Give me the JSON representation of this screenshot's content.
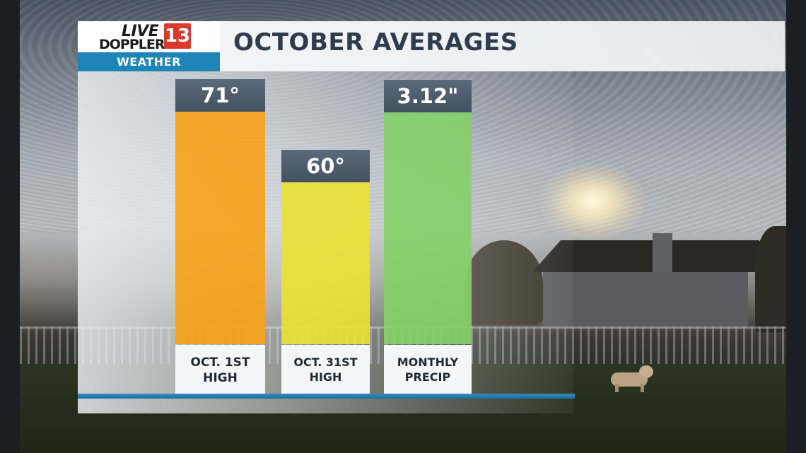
{
  "header": {
    "title": "OCTOBER AVERAGES",
    "logo": {
      "live": "LIVE",
      "doppler": "DOPPLER",
      "number": "13",
      "weather": "WEATHER"
    }
  },
  "chart_data": {
    "type": "bar",
    "title": "OCTOBER AVERAGES",
    "categories": [
      "OCT. 1ST HIGH",
      "OCT. 31ST HIGH",
      "MONTHLY PRECIP"
    ],
    "values": [
      71,
      60,
      3.12
    ],
    "value_labels": [
      "71°",
      "60°",
      "3.12\""
    ],
    "category_lines": [
      [
        "OCT. 1ST",
        "HIGH"
      ],
      [
        "OCT. 31ST",
        "HIGH"
      ],
      [
        "MONTHLY",
        "PRECIP"
      ]
    ],
    "colors": [
      "#f6a21a",
      "#eae13a",
      "#84cf6a"
    ],
    "grid": false,
    "legend": "none"
  }
}
